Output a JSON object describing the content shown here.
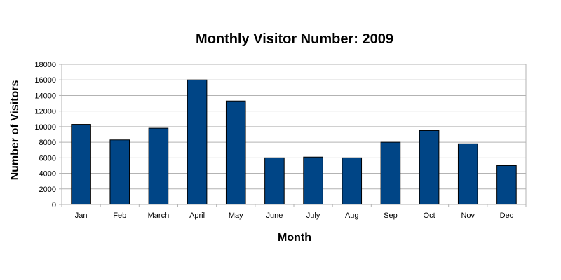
{
  "chart_data": {
    "type": "bar",
    "title": "Monthly Visitor Number: 2009",
    "xlabel": "Month",
    "ylabel": "Number of Visitors",
    "categories": [
      "Jan",
      "Feb",
      "March",
      "April",
      "May",
      "June",
      "July",
      "Aug",
      "Sep",
      "Oct",
      "Nov",
      "Dec"
    ],
    "values": [
      10300,
      8300,
      9800,
      16000,
      13300,
      6000,
      6100,
      6000,
      8000,
      9500,
      7800,
      5000
    ],
    "ylim": [
      0,
      18000
    ],
    "yticks": [
      "0",
      "2000",
      "4000",
      "6000",
      "8000",
      "10000",
      "12000",
      "14000",
      "16000",
      "18000"
    ],
    "grid": true,
    "legend": "none",
    "colors": {
      "bar_fill": "#004586",
      "bar_stroke": "#000000",
      "grid": "#b3b3b3",
      "axis": "#b3b3b3"
    }
  }
}
